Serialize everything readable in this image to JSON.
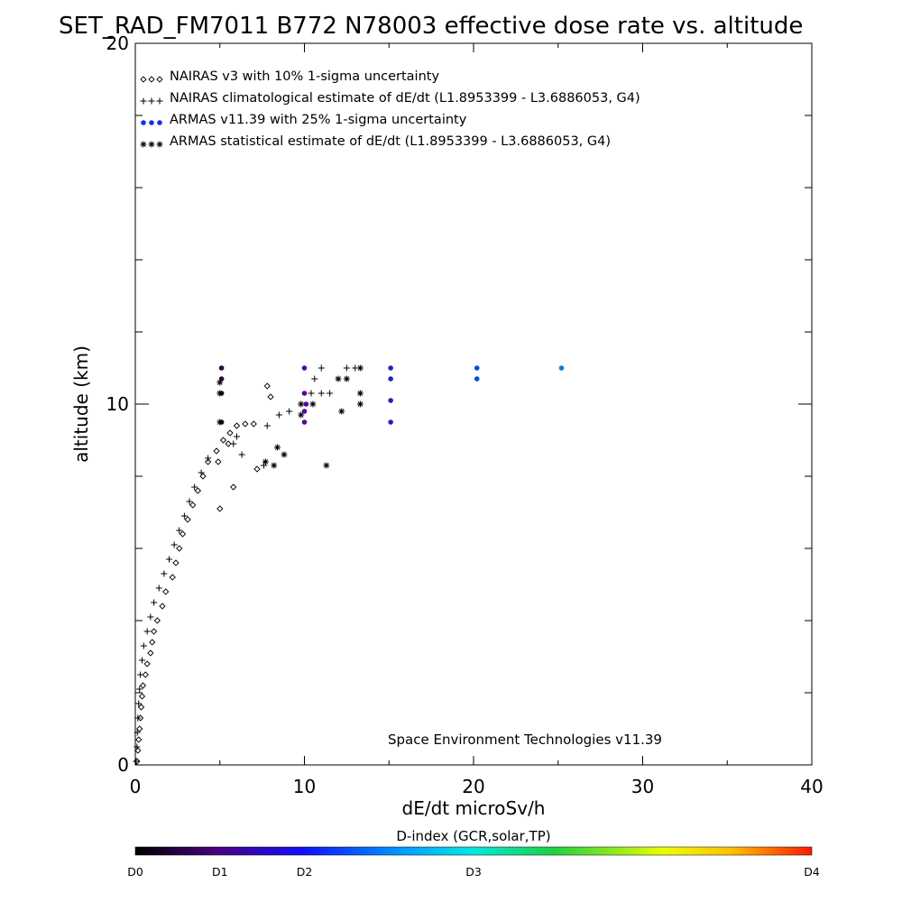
{
  "chart_data": {
    "type": "scatter",
    "title": "SET_RAD_FM7011  B772 N78003 effective dose rate vs. altitude",
    "xlabel": "dE/dt microSv/h",
    "ylabel": "altitude (km)",
    "xlim": [
      0,
      40
    ],
    "ylim": [
      0,
      20
    ],
    "x_ticks": [
      "0",
      "10",
      "20",
      "30",
      "40"
    ],
    "y_ticks": [
      "0",
      "10",
      "20"
    ],
    "legend_position": "top-left",
    "credit": "Space Environment Technologies v11.39",
    "colorbar": {
      "title": "D-index (GCR,solar,TP)",
      "labels": [
        "D0",
        "D1",
        "D2",
        "D3",
        "D4"
      ],
      "colors": [
        "#000000",
        "#5a00a0",
        "#0030ff",
        "#00e0e0",
        "#40d040",
        "#ffff00",
        "#ff2000"
      ]
    },
    "series": [
      {
        "name": "NAIRAS v3 with 10% 1-sigma uncertainty",
        "marker": "diamond",
        "color": "#000000",
        "points": [
          [
            0.1,
            0.1
          ],
          [
            0.15,
            0.4
          ],
          [
            0.2,
            0.7
          ],
          [
            0.25,
            1.0
          ],
          [
            0.3,
            1.3
          ],
          [
            0.35,
            1.6
          ],
          [
            0.4,
            1.9
          ],
          [
            0.45,
            2.2
          ],
          [
            0.6,
            2.5
          ],
          [
            0.7,
            2.8
          ],
          [
            0.9,
            3.1
          ],
          [
            1.0,
            3.4
          ],
          [
            1.1,
            3.7
          ],
          [
            1.3,
            4.0
          ],
          [
            1.6,
            4.4
          ],
          [
            1.8,
            4.8
          ],
          [
            2.2,
            5.2
          ],
          [
            2.4,
            5.6
          ],
          [
            2.6,
            6.0
          ],
          [
            2.8,
            6.4
          ],
          [
            3.1,
            6.8
          ],
          [
            3.4,
            7.2
          ],
          [
            3.7,
            7.6
          ],
          [
            4.0,
            8.0
          ],
          [
            4.3,
            8.4
          ],
          [
            4.8,
            8.7
          ],
          [
            5.2,
            9.0
          ],
          [
            5.6,
            9.2
          ],
          [
            6.0,
            9.4
          ],
          [
            6.5,
            9.45
          ],
          [
            7.0,
            9.45
          ],
          [
            5.0,
            7.1
          ],
          [
            5.8,
            7.7
          ],
          [
            7.2,
            8.2
          ],
          [
            8.0,
            10.2
          ],
          [
            7.8,
            10.5
          ],
          [
            4.9,
            8.4
          ],
          [
            5.5,
            8.9
          ]
        ]
      },
      {
        "name": "NAIRAS climatological estimate of dE/dt (L1.8953399 - L3.6886053, G4)",
        "marker": "plus",
        "color": "#000000",
        "points": [
          [
            0.05,
            0.1
          ],
          [
            0.1,
            0.5
          ],
          [
            0.12,
            0.9
          ],
          [
            0.15,
            1.3
          ],
          [
            0.2,
            1.7
          ],
          [
            0.25,
            2.1
          ],
          [
            0.3,
            2.5
          ],
          [
            0.4,
            2.9
          ],
          [
            0.5,
            3.3
          ],
          [
            0.7,
            3.7
          ],
          [
            0.9,
            4.1
          ],
          [
            1.1,
            4.5
          ],
          [
            1.4,
            4.9
          ],
          [
            1.7,
            5.3
          ],
          [
            2.0,
            5.7
          ],
          [
            2.3,
            6.1
          ],
          [
            2.6,
            6.5
          ],
          [
            2.9,
            6.9
          ],
          [
            3.2,
            7.3
          ],
          [
            3.5,
            7.7
          ],
          [
            3.9,
            8.1
          ],
          [
            4.3,
            8.5
          ],
          [
            5.8,
            8.9
          ],
          [
            6.0,
            9.1
          ],
          [
            6.3,
            8.6
          ],
          [
            7.6,
            8.3
          ],
          [
            7.8,
            9.4
          ],
          [
            8.5,
            9.7
          ],
          [
            9.1,
            9.8
          ],
          [
            10.4,
            10.3
          ],
          [
            11.0,
            10.3
          ],
          [
            11.5,
            10.3
          ],
          [
            11.0,
            11.0
          ],
          [
            12.5,
            11.0
          ],
          [
            13.0,
            11.0
          ],
          [
            10.6,
            10.7
          ]
        ]
      },
      {
        "name": "ARMAS v11.39 with 25% 1-sigma uncertainty",
        "marker": "dot",
        "color": "#0040e0",
        "points": [
          [
            5.1,
            11.0
          ],
          [
            5.1,
            10.7
          ],
          [
            5.1,
            10.3
          ],
          [
            5.1,
            9.5
          ],
          [
            10.0,
            11.0
          ],
          [
            10.0,
            10.3
          ],
          [
            10.0,
            9.8
          ],
          [
            10.0,
            9.5
          ],
          [
            10.1,
            10.0
          ],
          [
            15.1,
            11.0
          ],
          [
            15.1,
            10.7
          ],
          [
            15.1,
            10.1
          ],
          [
            15.1,
            9.5
          ],
          [
            20.2,
            11.0
          ],
          [
            20.2,
            10.7
          ],
          [
            25.2,
            11.0
          ]
        ],
        "point_colors": [
          "#300040",
          "#300040",
          "#300040",
          "#300040",
          "#5a00a0",
          "#5a00a0",
          "#5a00a0",
          "#5a00a0",
          "#5a00a0",
          "#2020c0",
          "#2020c0",
          "#2020c0",
          "#2020c0",
          "#0050e0",
          "#0050e0",
          "#0080e0"
        ]
      },
      {
        "name": "ARMAS statistical estimate of dE/dt (L1.8953399 - L3.6886053, G4)",
        "marker": "asterisk",
        "color": "#000000",
        "points": [
          [
            5.0,
            10.6
          ],
          [
            5.0,
            10.3
          ],
          [
            5.0,
            9.5
          ],
          [
            7.7,
            8.4
          ],
          [
            8.2,
            8.3
          ],
          [
            8.4,
            8.8
          ],
          [
            8.8,
            8.6
          ],
          [
            9.8,
            9.7
          ],
          [
            9.8,
            10.0
          ],
          [
            10.5,
            10.0
          ],
          [
            12.2,
            9.8
          ],
          [
            11.3,
            8.3
          ],
          [
            13.3,
            11.0
          ],
          [
            13.3,
            10.3
          ],
          [
            13.3,
            10.0
          ],
          [
            12.0,
            10.7
          ],
          [
            12.5,
            10.7
          ]
        ]
      }
    ]
  }
}
